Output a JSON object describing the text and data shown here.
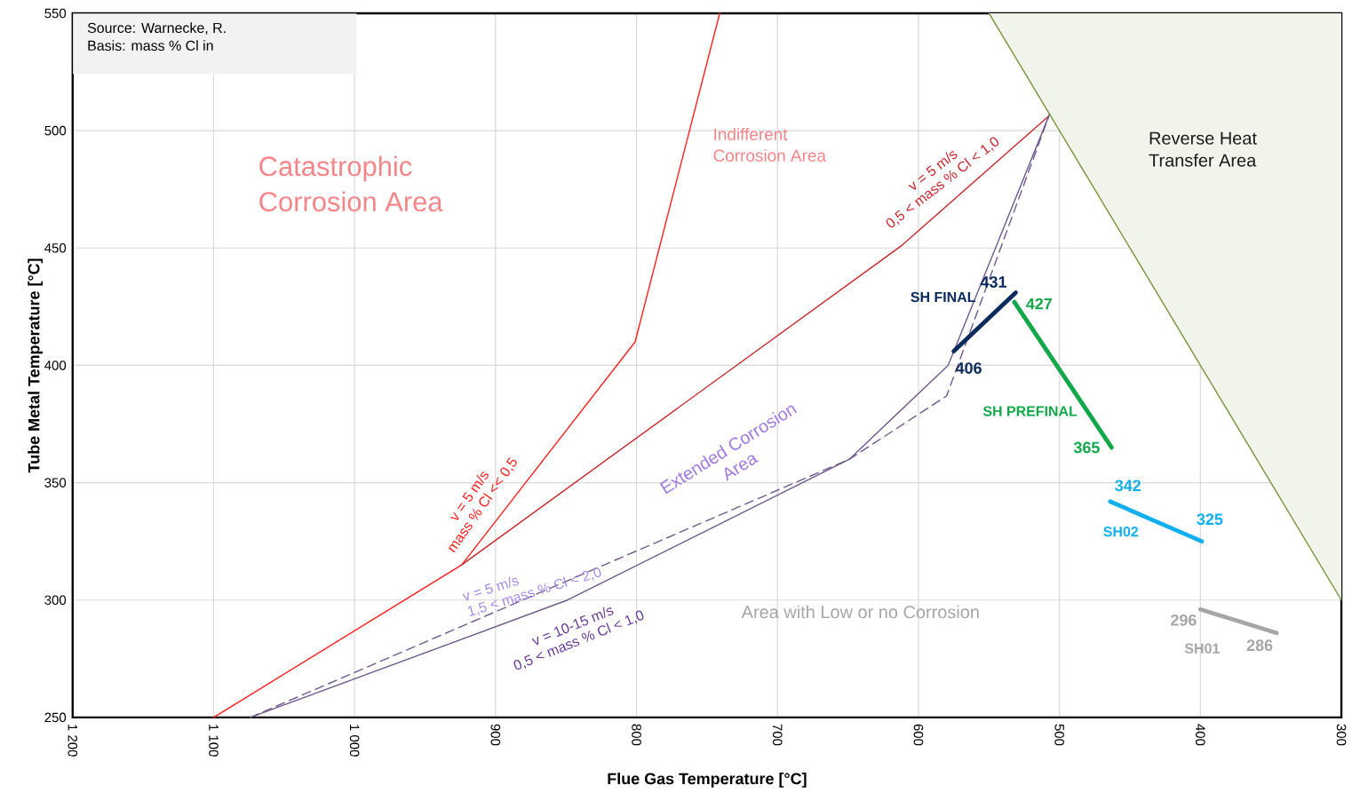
{
  "chart_data": {
    "type": "line",
    "xlabel": "Flue Gas Temperature [°C]",
    "ylabel": "Tube Metal Temperature [°C]",
    "xlim": [
      1200,
      300
    ],
    "ylim": [
      250,
      550
    ],
    "xticks": [
      {
        "value": 1200,
        "label": "1 200"
      },
      {
        "value": 1100,
        "label": "1 100"
      },
      {
        "value": 1000,
        "label": "1 000"
      },
      900,
      800,
      700,
      600,
      500,
      400,
      300
    ],
    "yticks": [
      250,
      300,
      350,
      400,
      450,
      500,
      550
    ],
    "grid": true,
    "series": [
      {
        "color": "#ff2020",
        "x": [
          1100,
          924,
          801,
          741
        ],
        "values": [
          250,
          315,
          410,
          550
        ]
      },
      {
        "color": "#c8242b",
        "x": [
          924,
          612,
          508
        ],
        "values": [
          315,
          451,
          506
        ]
      },
      {
        "color": "#6f5a8e",
        "x": [
          1074,
          849,
          649,
          579,
          507
        ],
        "values": [
          250,
          300,
          360,
          400,
          507
        ]
      },
      {
        "color": "#6f5a8e",
        "line_style": "dashed",
        "x": [
          1074,
          649,
          580,
          507
        ],
        "values": [
          250,
          360,
          387,
          507
        ]
      },
      {
        "color": "#77933c",
        "x": [
          550,
          300
        ],
        "values": [
          550,
          300
        ],
        "lower": [
          550,
          300
        ],
        "upper": [
          550,
          550
        ]
      },
      {
        "name": "SH FINAL",
        "color": "#0c2a5c",
        "x": [
          575,
          531
        ],
        "values": [
          406,
          431
        ],
        "value_labels": [
          "406",
          "431"
        ]
      },
      {
        "name": "SH PREFINAL",
        "color": "#12a84a",
        "x": [
          532,
          463
        ],
        "values": [
          427,
          365
        ],
        "value_labels": [
          "427",
          "365"
        ]
      },
      {
        "name": "SH02",
        "color": "#12aeef",
        "x": [
          464,
          399
        ],
        "values": [
          342,
          325
        ],
        "value_labels": [
          "342",
          "325"
        ]
      },
      {
        "name": "SH01",
        "color": "#a6a6a6",
        "x": [
          400,
          346
        ],
        "values": [
          296,
          286
        ],
        "value_labels": [
          "296",
          "286"
        ]
      }
    ],
    "annotations": [
      "Source: Warnecke, R.",
      "Basis:  mass % Cl in",
      "Catastrophic",
      "Corrosion Area",
      "Indifferent",
      "Corrosion Area",
      "Reverse Heat",
      "Transfer Area",
      "Extended Corrosion",
      "Area",
      "Area with Low  or no Corrosion",
      "v = 5 m/s",
      "mass % Cl << 0,5",
      "v = 5 m/s",
      "0,5 < mass % Cl < 1,0",
      "v = 5 m/s",
      "1,5 < mass % Cl < 2,0",
      "v = 10-15 m/s",
      "0,5 < mass % Cl < 1,0"
    ]
  }
}
